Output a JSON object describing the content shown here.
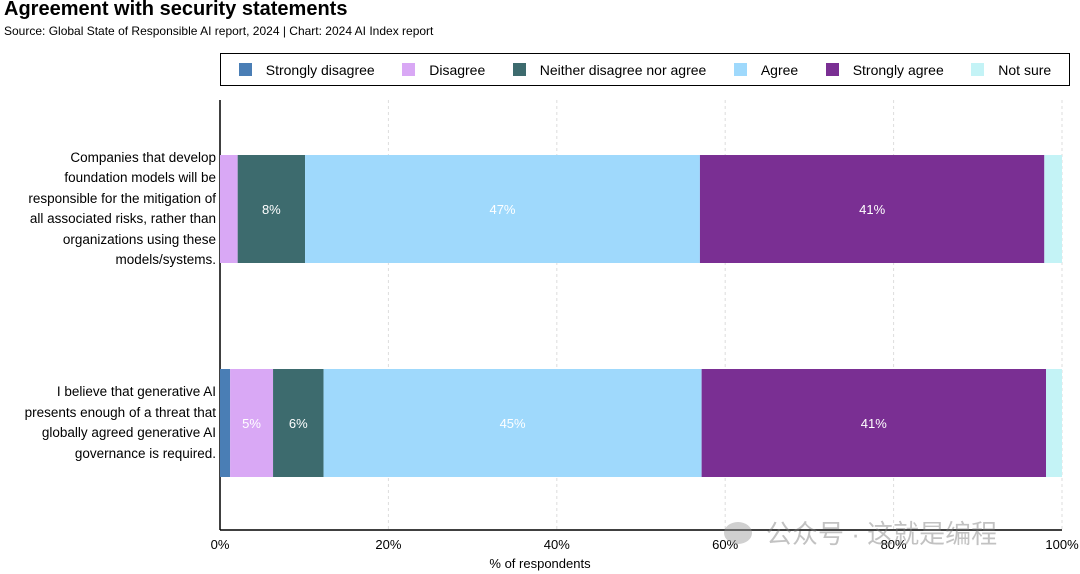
{
  "title": "Agreement with security statements",
  "subtitle": "Source: Global State of Responsible AI report, 2024 | Chart: 2024 AI Index report",
  "watermark": "公众号 · 这就是编程",
  "chart_data": {
    "type": "bar",
    "orientation": "horizontal",
    "stacked": true,
    "title": "Agreement with security statements",
    "xlabel": "% of respondents",
    "ylabel": "",
    "xlim": [
      0,
      100
    ],
    "x_ticks": [
      "0%",
      "20%",
      "40%",
      "60%",
      "80%",
      "100%"
    ],
    "grid": "vertical dashed",
    "legend_position": "top",
    "categories": [
      {
        "label": "Companies that develop foundation models will be responsible for the mitigation of all associated risks, rather than organizations using these models/systems.",
        "lines": [
          "Companies that develop",
          "foundation models will be",
          "responsible for the mitigation of",
          "all associated risks, rather than",
          "organizations using these",
          "models/systems."
        ]
      },
      {
        "label": "I believe that generative AI presents enough of a threat that globally agreed generative AI governance is required.",
        "lines": [
          "I believe that generative AI",
          "presents enough of a threat that",
          "globally agreed generative AI",
          "governance is required."
        ]
      }
    ],
    "series": [
      {
        "name": "Strongly disagree",
        "color": "#4a7eb5",
        "values": [
          0,
          1.2
        ],
        "labels": [
          "",
          ""
        ]
      },
      {
        "name": "Disagree",
        "color": "#d9a8f5",
        "values": [
          2.1,
          5.1
        ],
        "labels": [
          "",
          "5%"
        ]
      },
      {
        "name": "Neither disagree nor agree",
        "color": "#3d6b6e",
        "values": [
          8.0,
          6.0
        ],
        "labels": [
          "8%",
          "6%"
        ]
      },
      {
        "name": "Agree",
        "color": "#9fd9fc",
        "values": [
          46.9,
          44.9
        ],
        "labels": [
          "47%",
          "45%"
        ]
      },
      {
        "name": "Strongly agree",
        "color": "#7a2f93",
        "values": [
          40.9,
          40.9
        ],
        "labels": [
          "41%",
          "41%"
        ]
      },
      {
        "name": "Not sure",
        "color": "#c4f3f6",
        "values": [
          2.1,
          1.9
        ],
        "labels": [
          "",
          ""
        ]
      }
    ]
  }
}
